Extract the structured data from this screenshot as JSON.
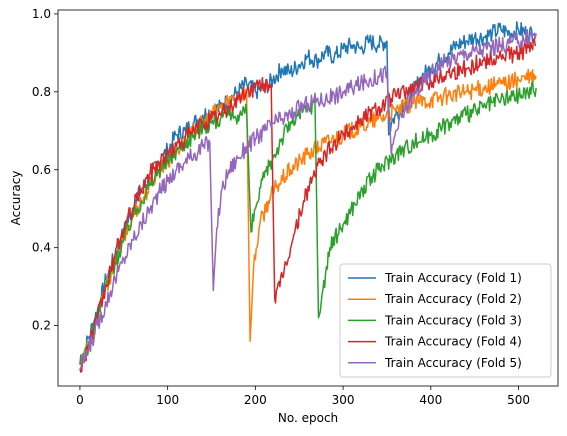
{
  "chart_data": {
    "type": "line",
    "title": "",
    "xlabel": "No. epoch",
    "ylabel": "Accuracy",
    "xlim": [
      -25,
      545
    ],
    "ylim": [
      0.045,
      1.01
    ],
    "xticks": [
      0,
      100,
      200,
      300,
      400,
      500
    ],
    "yticks": [
      0.2,
      0.4,
      0.6,
      0.8,
      1.0
    ],
    "xtick_labels": [
      "0",
      "100",
      "200",
      "300",
      "400",
      "500"
    ],
    "ytick_labels": [
      "0.2",
      "0.4",
      "0.6",
      "0.8",
      "1.0"
    ],
    "grid": false,
    "legend_position": "lower-right",
    "series": [
      {
        "name": "Train Accuracy (Fold 1)",
        "color": "#1f77b4",
        "x": [
          0,
          10,
          20,
          30,
          40,
          50,
          60,
          70,
          80,
          90,
          100,
          110,
          120,
          130,
          140,
          150,
          160,
          170,
          180,
          190,
          200,
          210,
          220,
          230,
          240,
          250,
          260,
          270,
          280,
          290,
          300,
          310,
          320,
          330,
          340,
          350,
          352,
          355,
          360,
          370,
          380,
          390,
          400,
          410,
          420,
          430,
          440,
          450,
          460,
          470,
          480,
          490,
          500,
          510,
          520
        ],
        "y": [
          0.1,
          0.17,
          0.24,
          0.32,
          0.38,
          0.44,
          0.5,
          0.55,
          0.58,
          0.62,
          0.65,
          0.69,
          0.7,
          0.72,
          0.74,
          0.75,
          0.76,
          0.78,
          0.8,
          0.82,
          0.8,
          0.81,
          0.83,
          0.86,
          0.85,
          0.87,
          0.89,
          0.88,
          0.9,
          0.89,
          0.91,
          0.92,
          0.91,
          0.93,
          0.92,
          0.93,
          0.69,
          0.72,
          0.74,
          0.77,
          0.8,
          0.84,
          0.86,
          0.88,
          0.9,
          0.92,
          0.93,
          0.94,
          0.94,
          0.95,
          0.96,
          0.95,
          0.96,
          0.95,
          0.95
        ]
      },
      {
        "name": "Train Accuracy (Fold 2)",
        "color": "#ff7f0e",
        "x": [
          0,
          10,
          20,
          30,
          40,
          50,
          60,
          70,
          80,
          90,
          100,
          110,
          120,
          130,
          140,
          150,
          160,
          170,
          180,
          190,
          194,
          198,
          205,
          215,
          225,
          240,
          260,
          280,
          300,
          320,
          340,
          360,
          380,
          400,
          420,
          440,
          460,
          480,
          500,
          520
        ],
        "y": [
          0.1,
          0.15,
          0.22,
          0.3,
          0.36,
          0.42,
          0.48,
          0.52,
          0.56,
          0.6,
          0.62,
          0.65,
          0.67,
          0.7,
          0.72,
          0.74,
          0.76,
          0.78,
          0.79,
          0.8,
          0.16,
          0.35,
          0.46,
          0.52,
          0.56,
          0.6,
          0.64,
          0.67,
          0.69,
          0.71,
          0.73,
          0.75,
          0.77,
          0.78,
          0.79,
          0.8,
          0.81,
          0.82,
          0.83,
          0.84
        ]
      },
      {
        "name": "Train Accuracy (Fold 3)",
        "color": "#2ca02c",
        "x": [
          0,
          10,
          20,
          30,
          40,
          50,
          60,
          70,
          80,
          90,
          100,
          110,
          120,
          130,
          140,
          150,
          160,
          170,
          180,
          190,
          195,
          200,
          210,
          220,
          230,
          240,
          250,
          260,
          268,
          272,
          276,
          285,
          300,
          320,
          340,
          360,
          380,
          400,
          420,
          440,
          460,
          480,
          500,
          520
        ],
        "y": [
          0.1,
          0.15,
          0.22,
          0.3,
          0.36,
          0.42,
          0.48,
          0.52,
          0.56,
          0.6,
          0.62,
          0.65,
          0.67,
          0.69,
          0.71,
          0.72,
          0.73,
          0.74,
          0.74,
          0.75,
          0.44,
          0.5,
          0.58,
          0.63,
          0.68,
          0.72,
          0.74,
          0.76,
          0.77,
          0.22,
          0.28,
          0.4,
          0.46,
          0.54,
          0.6,
          0.64,
          0.67,
          0.69,
          0.72,
          0.74,
          0.76,
          0.78,
          0.79,
          0.81
        ]
      },
      {
        "name": "Train Accuracy (Fold 4)",
        "color": "#d62728",
        "x": [
          0,
          10,
          20,
          30,
          40,
          50,
          60,
          70,
          80,
          90,
          100,
          110,
          120,
          130,
          140,
          150,
          160,
          170,
          180,
          190,
          200,
          210,
          218,
          222,
          228,
          235,
          245,
          255,
          265,
          280,
          300,
          320,
          340,
          360,
          380,
          400,
          420,
          440,
          460,
          480,
          500,
          520
        ],
        "y": [
          0.09,
          0.15,
          0.22,
          0.3,
          0.38,
          0.45,
          0.5,
          0.55,
          0.59,
          0.62,
          0.64,
          0.66,
          0.68,
          0.7,
          0.72,
          0.73,
          0.74,
          0.76,
          0.78,
          0.8,
          0.81,
          0.82,
          0.82,
          0.27,
          0.3,
          0.36,
          0.44,
          0.52,
          0.58,
          0.64,
          0.69,
          0.73,
          0.76,
          0.79,
          0.81,
          0.83,
          0.85,
          0.86,
          0.88,
          0.89,
          0.9,
          0.92
        ]
      },
      {
        "name": "Train Accuracy (Fold 5)",
        "color": "#9467bd",
        "x": [
          0,
          10,
          20,
          30,
          40,
          50,
          60,
          70,
          80,
          90,
          100,
          110,
          120,
          130,
          140,
          148,
          152,
          156,
          162,
          170,
          180,
          190,
          200,
          210,
          220,
          230,
          240,
          250,
          260,
          270,
          280,
          290,
          300,
          310,
          320,
          330,
          340,
          350,
          355,
          360,
          370,
          380,
          390,
          400,
          410,
          420,
          440,
          460,
          480,
          500,
          520
        ],
        "y": [
          0.09,
          0.14,
          0.2,
          0.26,
          0.32,
          0.37,
          0.42,
          0.46,
          0.5,
          0.54,
          0.57,
          0.6,
          0.62,
          0.64,
          0.66,
          0.67,
          0.29,
          0.45,
          0.55,
          0.6,
          0.63,
          0.66,
          0.68,
          0.7,
          0.72,
          0.73,
          0.74,
          0.76,
          0.77,
          0.78,
          0.78,
          0.79,
          0.8,
          0.81,
          0.82,
          0.83,
          0.84,
          0.85,
          0.64,
          0.7,
          0.75,
          0.79,
          0.82,
          0.85,
          0.87,
          0.88,
          0.9,
          0.91,
          0.92,
          0.93,
          0.95
        ]
      }
    ]
  }
}
